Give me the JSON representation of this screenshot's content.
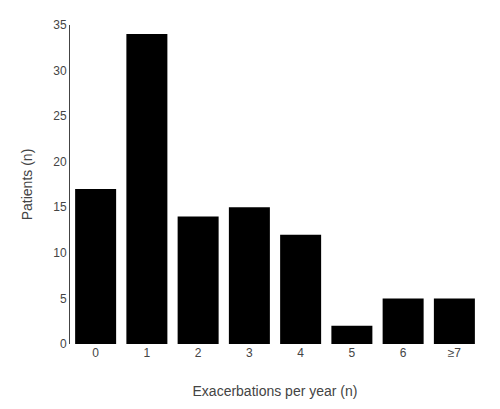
{
  "chart_data": {
    "type": "bar",
    "xlabel": "Exacerbations per year (n)",
    "ylabel": "Patients (n)",
    "categories": [
      "0",
      "1",
      "2",
      "3",
      "4",
      "5",
      "6",
      "≥7"
    ],
    "values": [
      17,
      34,
      14,
      15,
      12,
      2,
      5,
      5
    ],
    "color": "#000000",
    "ylim": [
      0,
      35
    ],
    "yticks": [
      0,
      5,
      10,
      15,
      20,
      25,
      30,
      35
    ],
    "grid": false
  }
}
